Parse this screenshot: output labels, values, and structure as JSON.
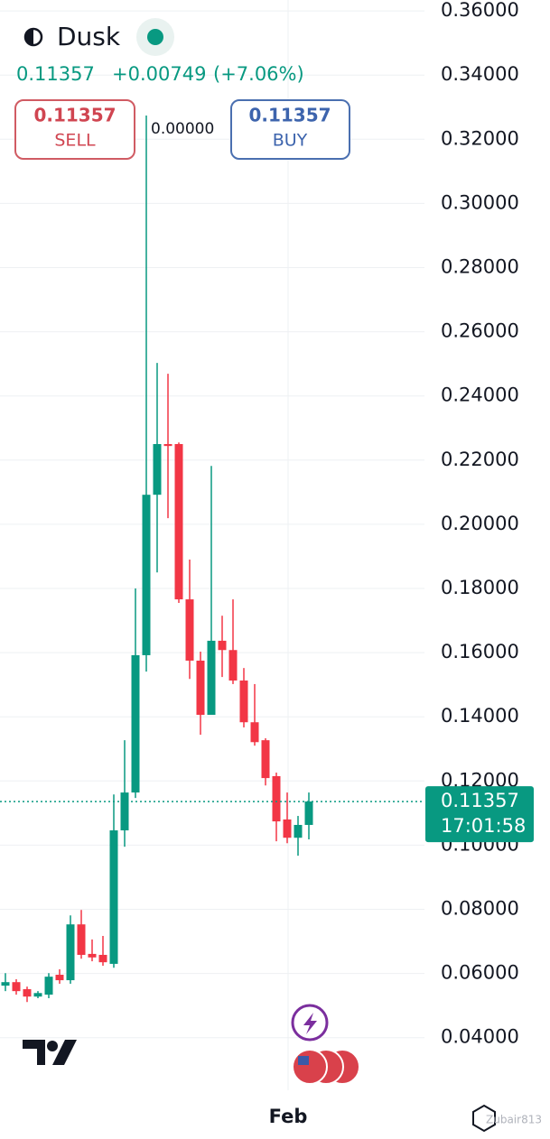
{
  "header": {
    "symbol": "Dusk",
    "change": "+0.00749",
    "change_pct": "(+7.06%)",
    "spread": "0.00000",
    "sell": {
      "price": 0.11357,
      "label": "SELL"
    },
    "buy": {
      "price": 0.11357,
      "label": "BUY"
    },
    "watermark": "Zubair813"
  },
  "chart_data": {
    "type": "candlestick",
    "categories": [
      null,
      null,
      null,
      null,
      null,
      null,
      null,
      null,
      null,
      null,
      null,
      null,
      null,
      null,
      null,
      null,
      null,
      null,
      null,
      null,
      null,
      null,
      null,
      null,
      null,
      null,
      "Feb",
      null,
      null
    ],
    "open": [
      0.0562,
      0.0573,
      0.0551,
      0.0528,
      0.0534,
      0.0596,
      0.0579,
      0.0753,
      0.0661,
      0.0658,
      0.063,
      0.1046,
      0.1164,
      0.1592,
      0.2092,
      0.225,
      0.225,
      0.1766,
      0.1575,
      0.1406,
      0.1637,
      0.1608,
      0.1513,
      0.1383,
      0.1327,
      0.1215,
      0.108,
      0.1023,
      0.1063
    ],
    "high": [
      0.0601,
      0.0582,
      0.0559,
      0.0545,
      0.0601,
      0.0613,
      0.0781,
      0.0798,
      0.0706,
      0.0717,
      0.1158,
      0.1327,
      0.18,
      0.3274,
      0.2503,
      0.2469,
      0.2255,
      0.189,
      0.1603,
      0.2182,
      0.1715,
      0.1766,
      0.1552,
      0.1502,
      0.1333,
      0.1226,
      0.1164,
      0.1091,
      0.1164
    ],
    "low": [
      0.0545,
      0.0534,
      0.0511,
      0.0523,
      0.0523,
      0.0568,
      0.0568,
      0.0646,
      0.0638,
      0.0624,
      0.0618,
      0.0995,
      0.1147,
      0.1541,
      0.185,
      0.2019,
      0.1755,
      0.1518,
      0.1344,
      0.1406,
      0.1524,
      0.1502,
      0.1367,
      0.131,
      0.1186,
      0.1012,
      0.1006,
      0.0967,
      0.1018
    ],
    "close": [
      0.0573,
      0.0545,
      0.0528,
      0.0539,
      0.059,
      0.0579,
      0.0753,
      0.0658,
      0.065,
      0.0635,
      0.1046,
      0.1164,
      0.1592,
      0.2092,
      0.225,
      0.2244,
      0.1766,
      0.1575,
      0.1406,
      0.1637,
      0.1608,
      0.1513,
      0.1383,
      0.1321,
      0.1209,
      0.1074,
      0.1023,
      0.1063,
      0.1136
    ],
    "up_color": "#089981",
    "down_color": "#f23645",
    "ylim": [
      0.0236,
      0.3634
    ],
    "yticks": [
      {
        "value": 0.36,
        "label": "0.36000"
      },
      {
        "value": 0.34,
        "label": "0.34000"
      },
      {
        "value": 0.32,
        "label": "0.32000"
      },
      {
        "value": 0.3,
        "label": "0.30000"
      },
      {
        "value": 0.28,
        "label": "0.28000"
      },
      {
        "value": 0.26,
        "label": "0.26000"
      },
      {
        "value": 0.24,
        "label": "0.24000"
      },
      {
        "value": 0.22,
        "label": "0.22000"
      },
      {
        "value": 0.2,
        "label": "0.20000"
      },
      {
        "value": 0.18,
        "label": "0.18000"
      },
      {
        "value": 0.16,
        "label": "0.16000"
      },
      {
        "value": 0.14,
        "label": "0.14000"
      },
      {
        "value": 0.12,
        "label": "0.12000"
      },
      {
        "value": 0.1,
        "label": "0.10000"
      },
      {
        "value": 0.08,
        "label": "0.08000"
      },
      {
        "value": 0.06,
        "label": "0.06000"
      },
      {
        "value": 0.04,
        "label": "0.04000"
      }
    ],
    "grid": true,
    "last_price": 0.11357,
    "countdown": "17:01:58"
  }
}
